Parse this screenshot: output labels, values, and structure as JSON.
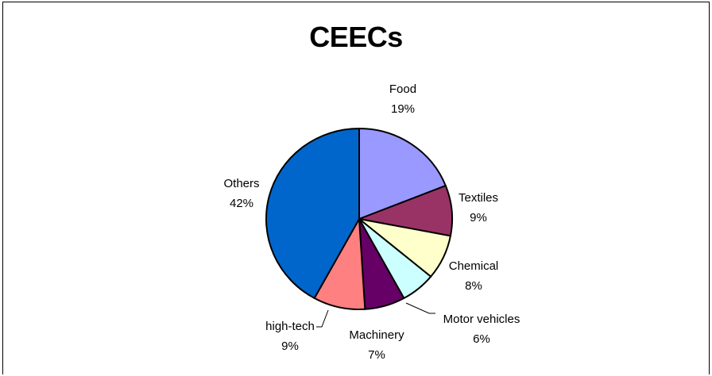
{
  "chart_data": {
    "type": "pie",
    "title": "CEECs",
    "slices": [
      {
        "label": "Food",
        "percent_label": "19%",
        "value": 19,
        "color": "#9999ff"
      },
      {
        "label": "Textiles",
        "percent_label": "9%",
        "value": 9,
        "color": "#993366"
      },
      {
        "label": "Chemical",
        "percent_label": "8%",
        "value": 8,
        "color": "#ffffcc"
      },
      {
        "label": "Motor vehicles",
        "percent_label": "6%",
        "value": 6,
        "color": "#ccffff"
      },
      {
        "label": "Machinery",
        "percent_label": "7%",
        "value": 7,
        "color": "#660066"
      },
      {
        "label": "high-tech",
        "percent_label": "9%",
        "value": 9,
        "color": "#ff8080"
      },
      {
        "label": "Others",
        "percent_label": "42%",
        "value": 42,
        "color": "#0066cc"
      }
    ],
    "start_angle_deg": 0,
    "direction": "clockwise"
  }
}
